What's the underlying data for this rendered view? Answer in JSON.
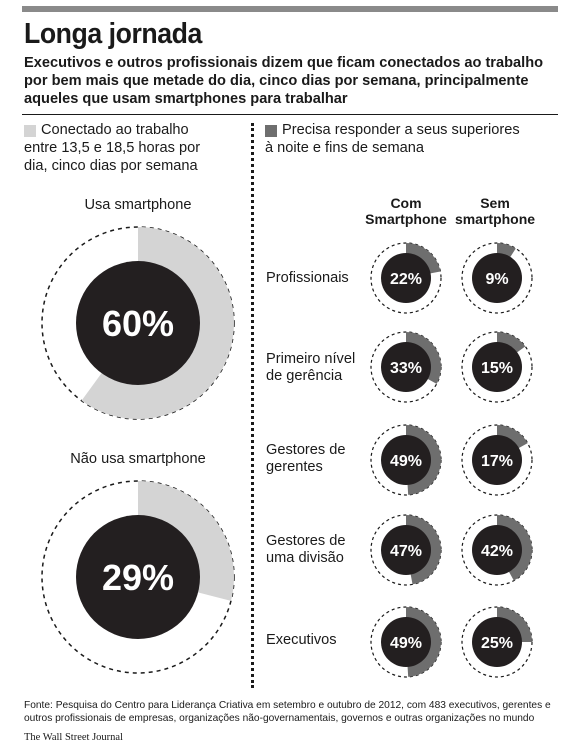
{
  "title": "Longa jornada",
  "subtitle": "Executivos e outros profissionais dizem que ficam conectados ao trabalho por bem mais que metade do dia, cinco dias por semana, principalmente aqueles que usam smartphones para trabalhar",
  "legend": {
    "connected": [
      "Conectado ao trabalho",
      "entre 13,5 e 18,5 horas por",
      "dia, cinco dias por semana"
    ],
    "respond": [
      "Precisa responder a seus superiores",
      "à noite e fins de semana"
    ]
  },
  "colors": {
    "light": "#d4d4d4",
    "dark": "#6e6e6e",
    "center": "#231f20"
  },
  "columns": [
    [
      "Com",
      "Smartphone"
    ],
    [
      "Sem",
      "smartphone"
    ]
  ],
  "chart_data": [
    {
      "type": "pie",
      "series_name": "Conectado ao trabalho entre 13,5 e 18,5 horas por dia, cinco dias por semana",
      "categories": [
        "Usa smartphone",
        "Não usa smartphone"
      ],
      "values": [
        60,
        29
      ],
      "labels": [
        "60%",
        "29%"
      ]
    },
    {
      "type": "pie",
      "series_name": "Precisa responder a seus superiores à noite e fins de semana",
      "categories": [
        [
          "Profissionais"
        ],
        [
          "Primeiro nível",
          "de gerência"
        ],
        [
          "Gestores de",
          "gerentes"
        ],
        [
          "Gestores de",
          "uma divisão"
        ],
        [
          "Executivos"
        ]
      ],
      "series": [
        {
          "name": "Com Smartphone",
          "values": [
            22,
            33,
            49,
            47,
            49
          ],
          "labels": [
            "22%",
            "33%",
            "49%",
            "47%",
            "49%"
          ]
        },
        {
          "name": "Sem smartphone",
          "values": [
            9,
            15,
            17,
            42,
            25
          ],
          "labels": [
            "9%",
            "15%",
            "17%",
            "42%",
            "25%"
          ]
        }
      ]
    }
  ],
  "source": "Fonte: Pesquisa do Centro para Liderança Criativa em setembro e outubro de 2012, com 483 executivos, gerentes e outros profissionais de empresas, organizações não-governamentais, governos e outras organizações no mundo",
  "credit": "The Wall Street Journal"
}
